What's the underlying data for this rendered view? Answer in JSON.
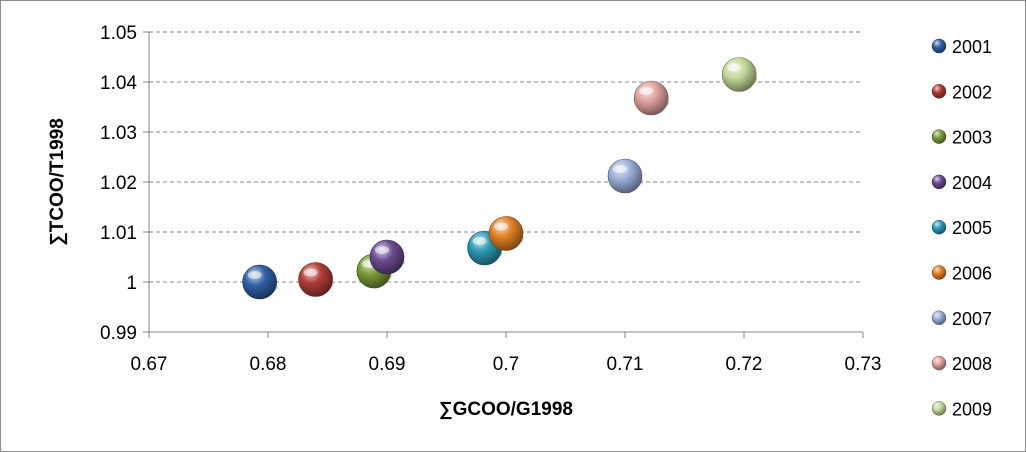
{
  "chart_data": {
    "type": "scatter",
    "xlabel": "∑GCOO/G1998",
    "ylabel": "∑TCOO/T1998",
    "xlim": [
      0.67,
      0.73
    ],
    "ylim": [
      0.99,
      1.05
    ],
    "x_ticks": [
      "0.67",
      "0.68",
      "0.69",
      "0.7",
      "0.71",
      "0.72",
      "0.73"
    ],
    "y_ticks": [
      "0.99",
      "1",
      "1.01",
      "1.02",
      "1.03",
      "1.04",
      "1.05"
    ],
    "grid": "horizontal-dashed",
    "legend_position": "right",
    "series": [
      {
        "name": "2001",
        "x": 0.6793,
        "y": 1.0,
        "color": "#2f5fa3"
      },
      {
        "name": "2002",
        "x": 0.684,
        "y": 1.0005,
        "color": "#b03a35"
      },
      {
        "name": "2003",
        "x": 0.6889,
        "y": 1.0022,
        "color": "#7a9a36"
      },
      {
        "name": "2004",
        "x": 0.69,
        "y": 1.005,
        "color": "#6a4a90"
      },
      {
        "name": "2005",
        "x": 0.6982,
        "y": 1.0068,
        "color": "#2a98b2"
      },
      {
        "name": "2006",
        "x": 0.7,
        "y": 1.0097,
        "color": "#e07f24"
      },
      {
        "name": "2007",
        "x": 0.71,
        "y": 1.0212,
        "color": "#9aaed8"
      },
      {
        "name": "2008",
        "x": 0.7122,
        "y": 1.0368,
        "color": "#e0a0a0"
      },
      {
        "name": "2009",
        "x": 0.7196,
        "y": 1.0415,
        "color": "#c2d89a"
      }
    ]
  }
}
